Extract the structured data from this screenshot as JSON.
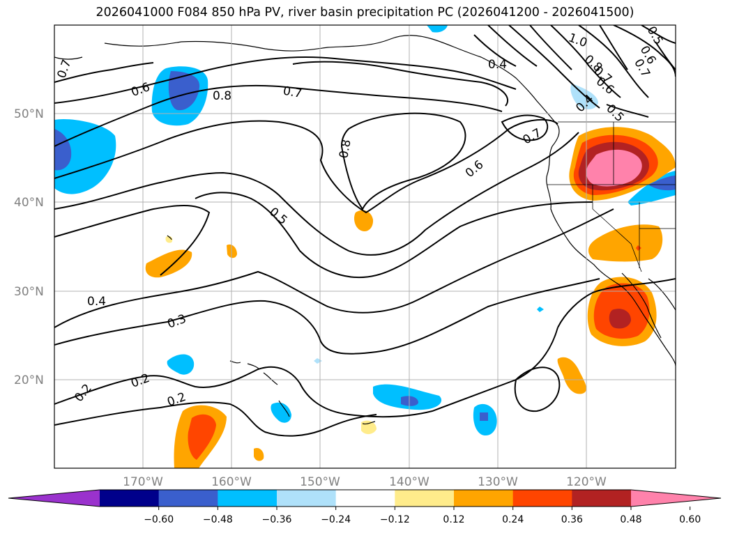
{
  "title": "2026041000 F084 850 hPa PV, river basin precipitation PC (2026041200 - 2026041500)",
  "chart_data": {
    "type": "contour-map",
    "title": "2026041000 F084 850 hPa PV, river basin precipitation PC (2026041200 - 2026041500)",
    "lon_range": [
      -180,
      -110
    ],
    "lat_range": [
      10,
      60
    ],
    "longitude_ticks": [
      "170°W",
      "160°W",
      "150°W",
      "140°W",
      "130°W",
      "120°W"
    ],
    "latitude_ticks": [
      "50°N",
      "40°N",
      "30°N",
      "20°N"
    ],
    "contour_labels": [
      "0.7",
      "0.6",
      "0.8",
      "0.7",
      "0.8",
      "0.6",
      "0.5",
      "0.4",
      "0.3",
      "0.2",
      "0.2",
      "0.2",
      "1.0",
      "0.8",
      "0.7",
      "0.6",
      "0.5",
      "0.4",
      "0.7",
      "0.5",
      "0.6",
      "0.4",
      "0.7"
    ],
    "colorbar": {
      "ticks": [
        "−0.60",
        "−0.48",
        "−0.36",
        "−0.24",
        "−0.12",
        "0.12",
        "0.24",
        "0.36",
        "0.48",
        "0.60"
      ],
      "colors": [
        "#9a32cd",
        "#00008b",
        "#3a5fcd",
        "#00bfff",
        "#afe1fa",
        "#ffffff",
        "#ffec8b",
        "#ffa500",
        "#ff4500",
        "#b22222",
        "#ff82ab"
      ]
    }
  }
}
